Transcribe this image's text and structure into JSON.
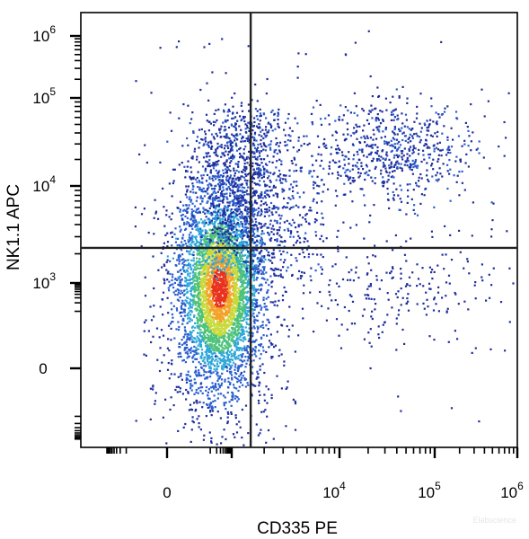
{
  "chart_data": {
    "type": "scatter",
    "style": "flow cytometry density dot plot (pseudocolor)",
    "xlabel": "CD335 PE",
    "ylabel": "NK1.1 APC",
    "x_scale": "biexponential",
    "y_scale": "biexponential",
    "x_ticks": [
      {
        "value": 0,
        "base": "0",
        "exp": ""
      },
      {
        "value": 10000,
        "base": "10",
        "exp": "4"
      },
      {
        "value": 100000,
        "base": "10",
        "exp": "5"
      },
      {
        "value": 1000000,
        "base": "10",
        "exp": "6"
      }
    ],
    "y_ticks": [
      {
        "value": 0,
        "base": "0",
        "exp": ""
      },
      {
        "value": 1000,
        "base": "10",
        "exp": "3"
      },
      {
        "value": 10000,
        "base": "10",
        "exp": "4"
      },
      {
        "value": 100000,
        "base": "10",
        "exp": "5"
      },
      {
        "value": 1000000,
        "base": "10",
        "exp": "6"
      }
    ],
    "quadrant_gate": {
      "x": 1500,
      "y": 2300
    },
    "populations": [
      {
        "description": "main cluster, CD335- NK1.1 low/int",
        "x_center": 250,
        "y_center": 700,
        "density": "highest (red core)"
      },
      {
        "description": "NK1.1+ CD335- tail",
        "x_center": 300,
        "y_center": 8000,
        "density": "medium"
      },
      {
        "description": "NK1.1+ CD335+ cells",
        "x_center": 35000,
        "y_center": 25000,
        "density": "low"
      },
      {
        "description": "CD335+ NK1.1 low scatter",
        "x_center": 40000,
        "y_center": 600,
        "density": "sparse"
      }
    ],
    "colormap": [
      "#1f2f9c",
      "#2b5fcf",
      "#2fa7d8",
      "#4cc27a",
      "#c8d93a",
      "#f3a32a",
      "#e8321f"
    ],
    "grid": false,
    "legend": "none"
  },
  "watermark": "Elabscience"
}
